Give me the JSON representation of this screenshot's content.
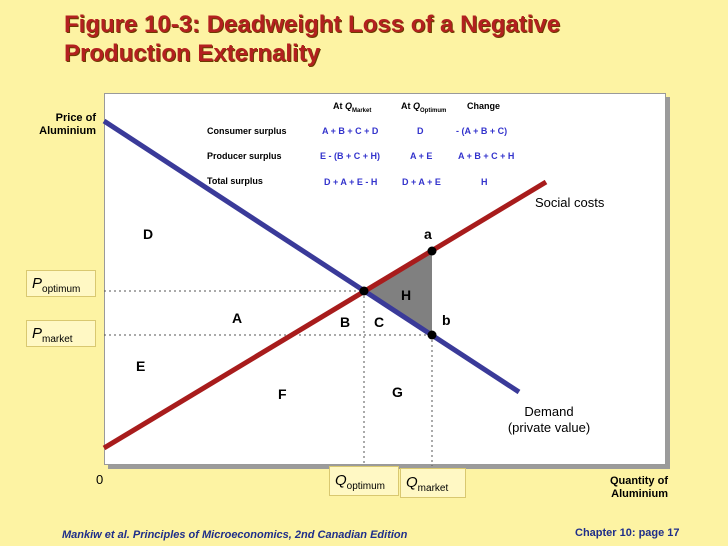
{
  "title": {
    "line1": "Figure 10-3: Deadweight Loss of a Negative",
    "line2": "Production Externality"
  },
  "axes": {
    "y_label_line1": "Price of",
    "y_label_line2": "Aluminium",
    "x_label_line1": "Quantity of",
    "x_label_line2": "Aluminium",
    "origin": "0"
  },
  "table": {
    "headers": {
      "market_prefix": "At ",
      "market_q": "Q",
      "market_sub": "Market",
      "optimum_prefix": "At ",
      "optimum_q": "Q",
      "optimum_sub": "Optimum",
      "change": "Change"
    },
    "rows": [
      {
        "label": "Consumer surplus",
        "market": "A + B + C + D",
        "optimum": "D",
        "change": "- (A + B + C)"
      },
      {
        "label": "Producer surplus",
        "market": "E - (B + C + H)",
        "optimum": "A + E",
        "change": "A + B + C + H"
      },
      {
        "label": "Total surplus",
        "market": "D + A + E - H",
        "optimum": "D + A + E",
        "change": "H"
      }
    ]
  },
  "regions": {
    "A": "A",
    "B": "B",
    "C": "C",
    "D": "D",
    "E": "E",
    "F": "F",
    "G": "G",
    "H": "H"
  },
  "points": {
    "a": "a",
    "b": "b"
  },
  "curves": {
    "social_costs": "Social costs",
    "demand_line1": "Demand",
    "demand_line2": "(private value)"
  },
  "price_labels": {
    "optimum_p": "P",
    "optimum_sub": "optimum",
    "market_p": "P",
    "market_sub": "market"
  },
  "quantity_labels": {
    "optimum_q": "Q",
    "optimum_sub": "optimum",
    "market_q": "Q",
    "market_sub": "market"
  },
  "colors": {
    "title": "#b32020",
    "social_costs_line": "#a81c1c",
    "demand_line": "#3a3a99",
    "table_values": "#3333cc",
    "background": "#fdf3a3",
    "deadweight_triangle": "#808080"
  },
  "footer": {
    "left": "Mankiw et al. Principles of Microeconomics, 2nd Canadian Edition",
    "right": "Chapter 10: page 17"
  }
}
